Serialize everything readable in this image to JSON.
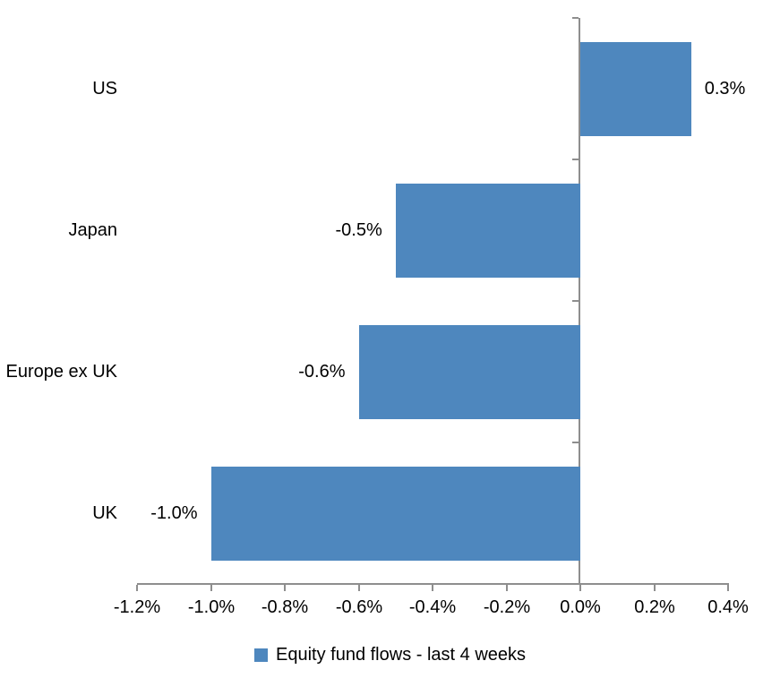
{
  "chart_data": {
    "type": "bar",
    "orientation": "horizontal",
    "title": "",
    "categories": [
      "US",
      "Japan",
      "Europe ex UK",
      "UK"
    ],
    "values": [
      0.3,
      -0.5,
      -0.6,
      -1.0
    ],
    "value_labels": [
      "0.3%",
      "-0.5%",
      "-0.6%",
      "-1.0%"
    ],
    "series_name": "Equity fund flows - last 4 weeks",
    "x_tick_values": [
      -1.2,
      -1.0,
      -0.8,
      -0.6,
      -0.4,
      -0.2,
      0.0,
      0.2,
      0.4
    ],
    "x_tick_labels": [
      "-1.2%",
      "-1.0%",
      "-0.8%",
      "-0.6%",
      "-0.4%",
      "-0.2%",
      "0.0%",
      "0.2%",
      "0.4%"
    ],
    "xlim": [
      -1.2,
      0.4
    ],
    "grid": false,
    "legend_position": "bottom",
    "data_labels_position": "outside-end",
    "colors": {
      "bar": "#4E87BE",
      "axis": "#8E8E8E",
      "text": "#000000",
      "background": "#FFFFFF"
    }
  }
}
